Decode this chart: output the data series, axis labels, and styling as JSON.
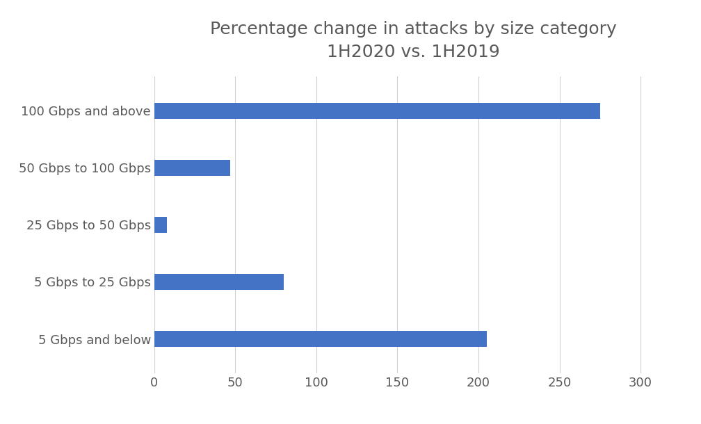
{
  "title_line1": "Percentage change in attacks by size category",
  "title_line2": "1H2020 vs. 1H2019",
  "categories": [
    "5 Gbps and below",
    "5 Gbps to 25 Gbps",
    "25 Gbps to 50 Gbps",
    "50 Gbps to 100 Gbps",
    "100 Gbps and above"
  ],
  "values": [
    205,
    80,
    8,
    47,
    275
  ],
  "bar_color": "#4472C4",
  "xlim": [
    0,
    320
  ],
  "xticks": [
    0,
    50,
    100,
    150,
    200,
    250,
    300
  ],
  "background_color": "#ffffff",
  "title_fontsize": 18,
  "tick_fontsize": 13,
  "label_fontsize": 13,
  "bar_height": 0.28,
  "grid_color": "#d0d0d0",
  "text_color": "#595959"
}
